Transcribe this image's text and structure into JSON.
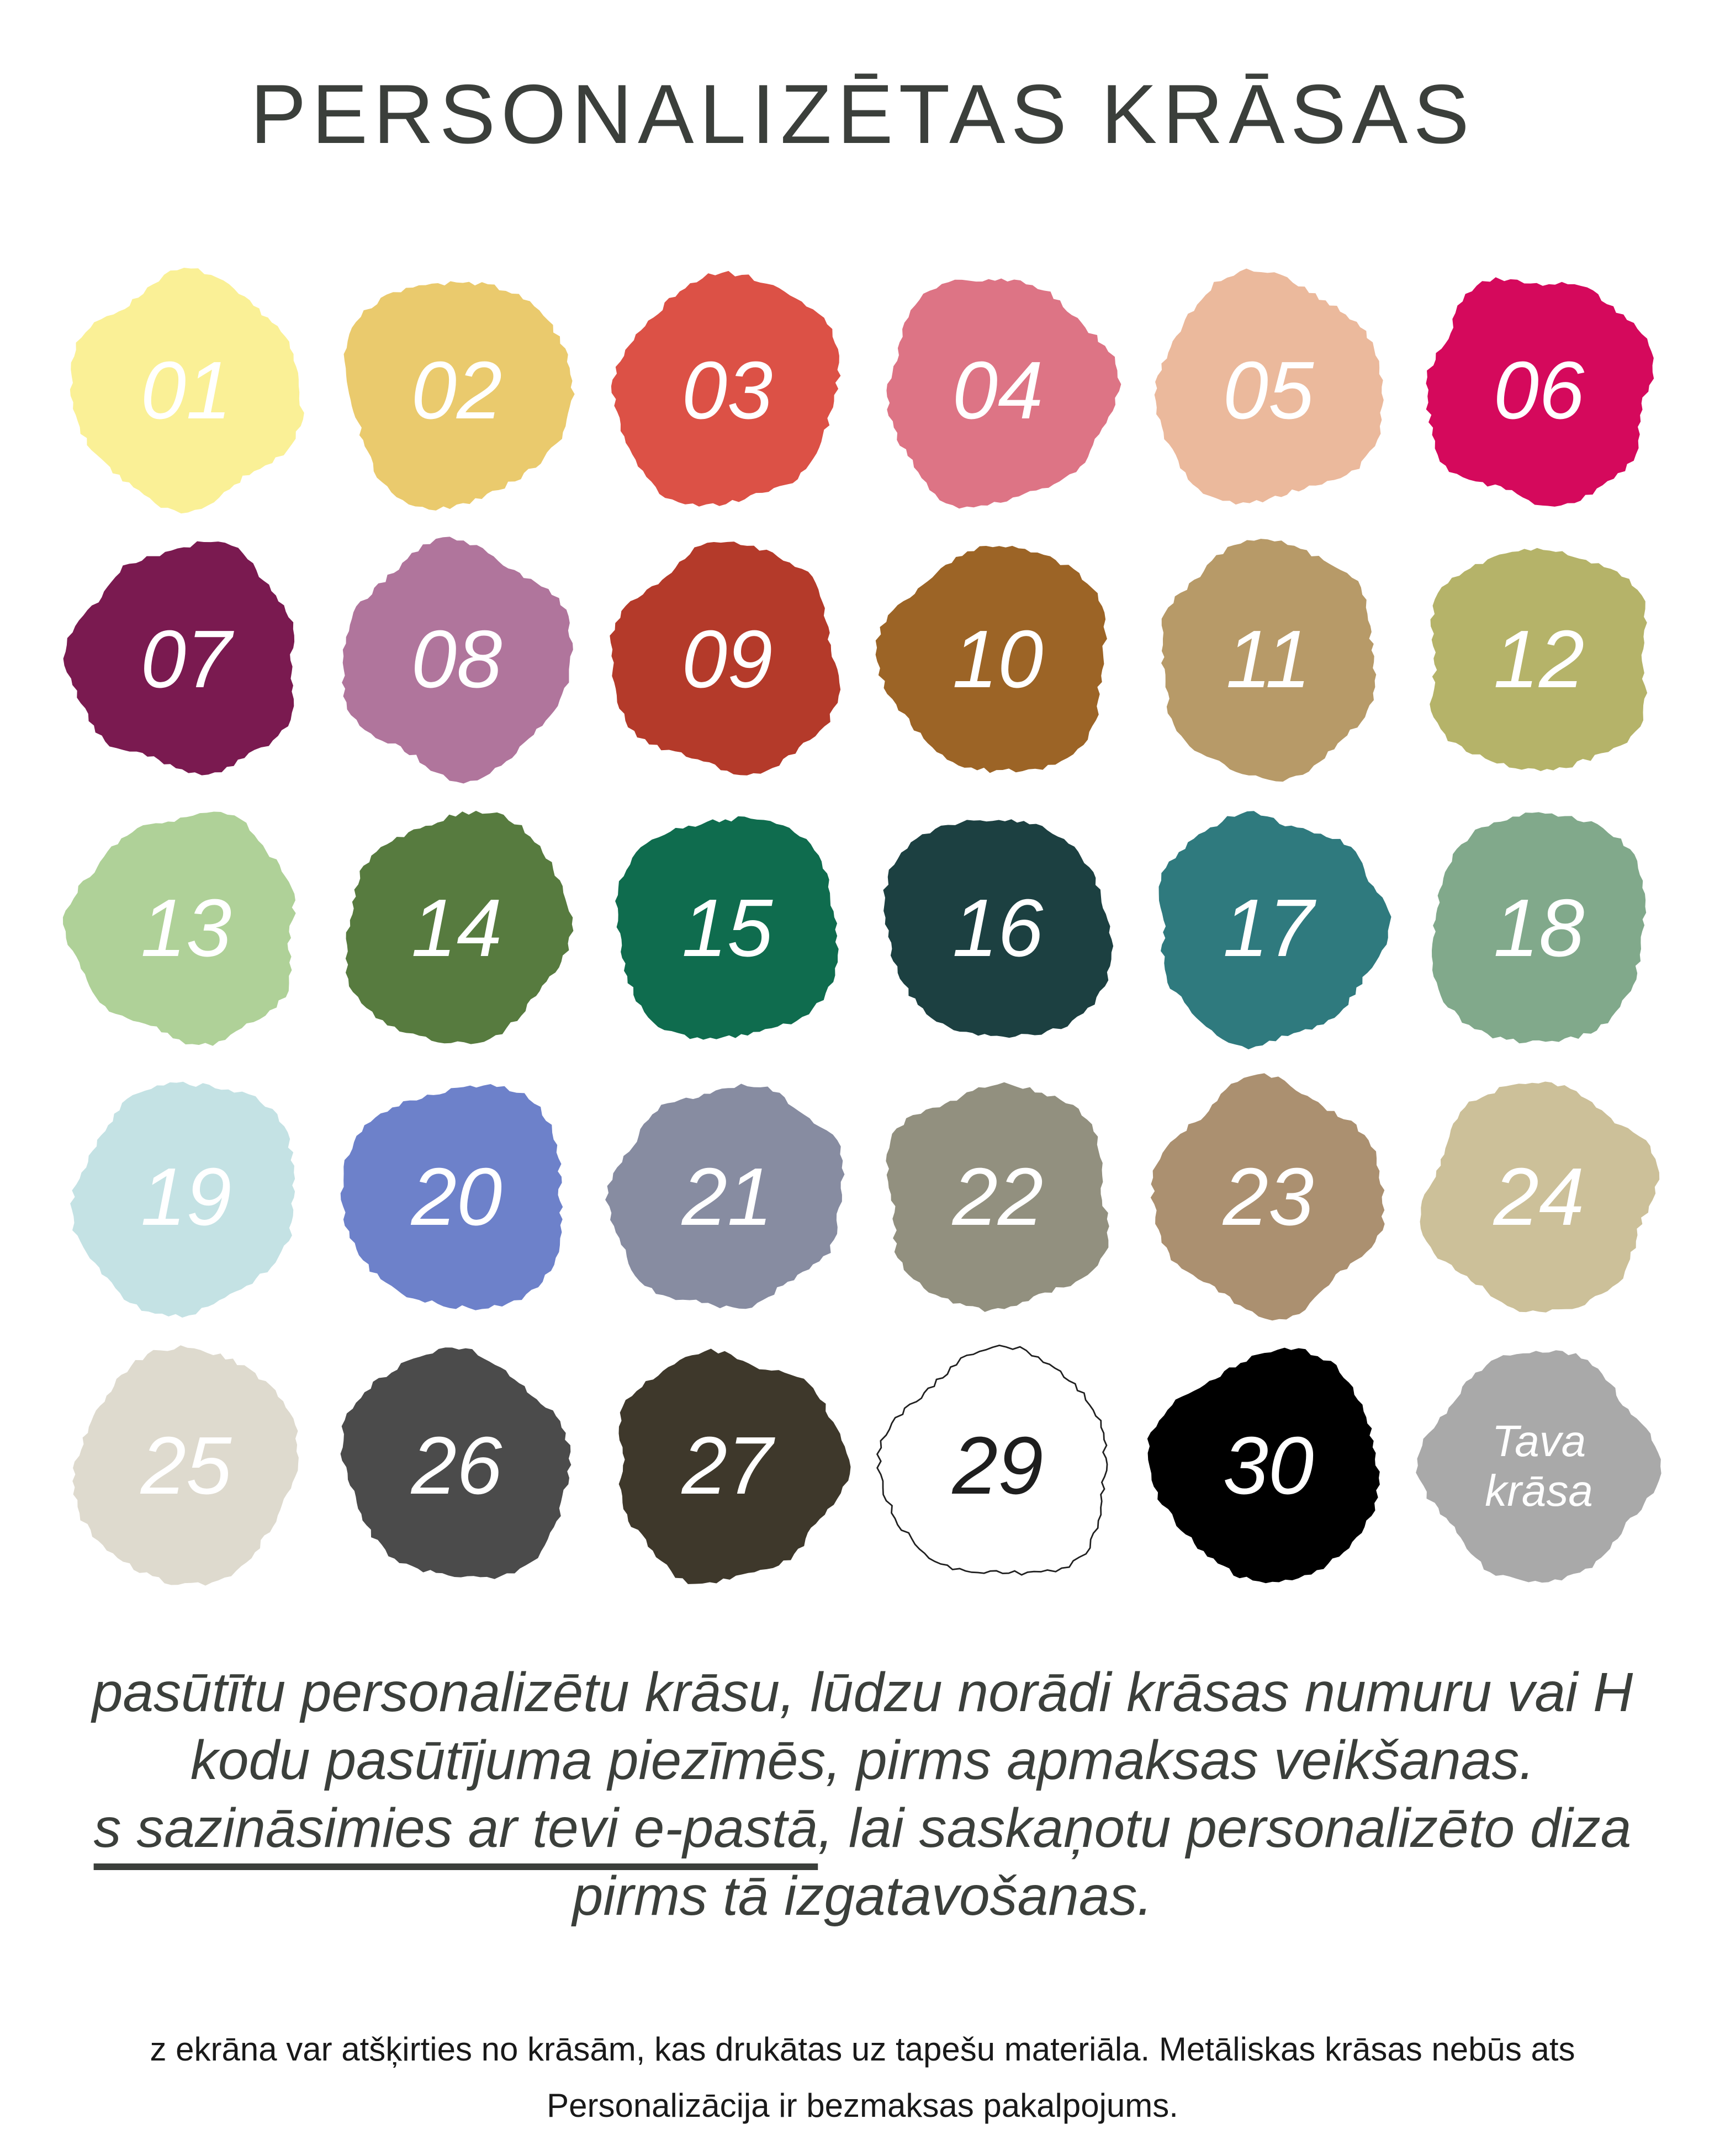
{
  "title": "PERSONALIZĒTAS KRĀSAS",
  "palette": {
    "swatches": [
      {
        "label": "01",
        "color": "#FAF096",
        "text_color": "#FFFFFF"
      },
      {
        "label": "02",
        "color": "#EACA6D",
        "text_color": "#FFFFFF"
      },
      {
        "label": "03",
        "color": "#DC5146",
        "text_color": "#FFFFFF"
      },
      {
        "label": "04",
        "color": "#DD7485",
        "text_color": "#FFFFFF"
      },
      {
        "label": "05",
        "color": "#EBB99C",
        "text_color": "#FFFFFF"
      },
      {
        "label": "06",
        "color": "#D5095C",
        "text_color": "#FFFFFF"
      },
      {
        "label": "07",
        "color": "#7A1A50",
        "text_color": "#FFFFFF"
      },
      {
        "label": "08",
        "color": "#B0759C",
        "text_color": "#FFFFFF"
      },
      {
        "label": "09",
        "color": "#B43A2A",
        "text_color": "#FFFFFF"
      },
      {
        "label": "10",
        "color": "#9C6426",
        "text_color": "#FFFFFF"
      },
      {
        "label": "11",
        "color": "#B79A68",
        "text_color": "#FFFFFF"
      },
      {
        "label": "12",
        "color": "#B5B369",
        "text_color": "#FFFFFF"
      },
      {
        "label": "13",
        "color": "#AFD198",
        "text_color": "#FFFFFF"
      },
      {
        "label": "14",
        "color": "#577B3F",
        "text_color": "#FFFFFF"
      },
      {
        "label": "15",
        "color": "#0F6C4E",
        "text_color": "#FFFFFF"
      },
      {
        "label": "16",
        "color": "#1C4041",
        "text_color": "#FFFFFF"
      },
      {
        "label": "17",
        "color": "#2F7A7E",
        "text_color": "#FFFFFF"
      },
      {
        "label": "18",
        "color": "#81A98B",
        "text_color": "#FFFFFF"
      },
      {
        "label": "19",
        "color": "#C4E2E4",
        "text_color": "#FFFFFF"
      },
      {
        "label": "20",
        "color": "#6D81CA",
        "text_color": "#FFFFFF"
      },
      {
        "label": "21",
        "color": "#878CA1",
        "text_color": "#FFFFFF"
      },
      {
        "label": "22",
        "color": "#92907F",
        "text_color": "#FFFFFF"
      },
      {
        "label": "23",
        "color": "#AB9070",
        "text_color": "#FFFFFF"
      },
      {
        "label": "24",
        "color": "#CCC099",
        "text_color": "#FFFFFF"
      },
      {
        "label": "25",
        "color": "#DEDACE",
        "text_color": "#FFFFFF"
      },
      {
        "label": "26",
        "color": "#4B4B4B",
        "text_color": "#FFFFFF"
      },
      {
        "label": "27",
        "color": "#3E382B",
        "text_color": "#FFFFFF"
      },
      {
        "label": "29",
        "color": "#FFFFFF",
        "text_color": "#1E1E1E",
        "outline": "#1F1F1F"
      },
      {
        "label": "30",
        "color": "#000000",
        "text_color": "#FFFFFF"
      },
      {
        "label": "Tava\nkrāsa",
        "color": "#A9A9A9",
        "text_color": "#FFFFFF"
      }
    ]
  },
  "paragraph": {
    "line1": "pasūtītu personalizētu krāsu, lūdzu norādi krāsas numuru vai H",
    "line2": "kodu pasūtījuma piezīmēs, pirms apmaksas veikšanas.",
    "line3_underlined": "s sazināsimies ar tevi e-pastā",
    "line3_rest": ", lai saskaņotu personalizēto diza",
    "line4": "pirms tā izgatavošanas."
  },
  "disclaimer": {
    "line1": "z ekrāna var atšķirties no krāsām, kas drukātas uz tapešu materiāla. Metāliskas krāsas nebūs ats",
    "line2": "Personalizācija ir bezmaksas pakalpojums."
  },
  "colors": {
    "background": "#FFFFFF",
    "title_text": "#3B3F3B",
    "body_text": "#3B3F3B",
    "disclaimer_text": "#191919"
  }
}
